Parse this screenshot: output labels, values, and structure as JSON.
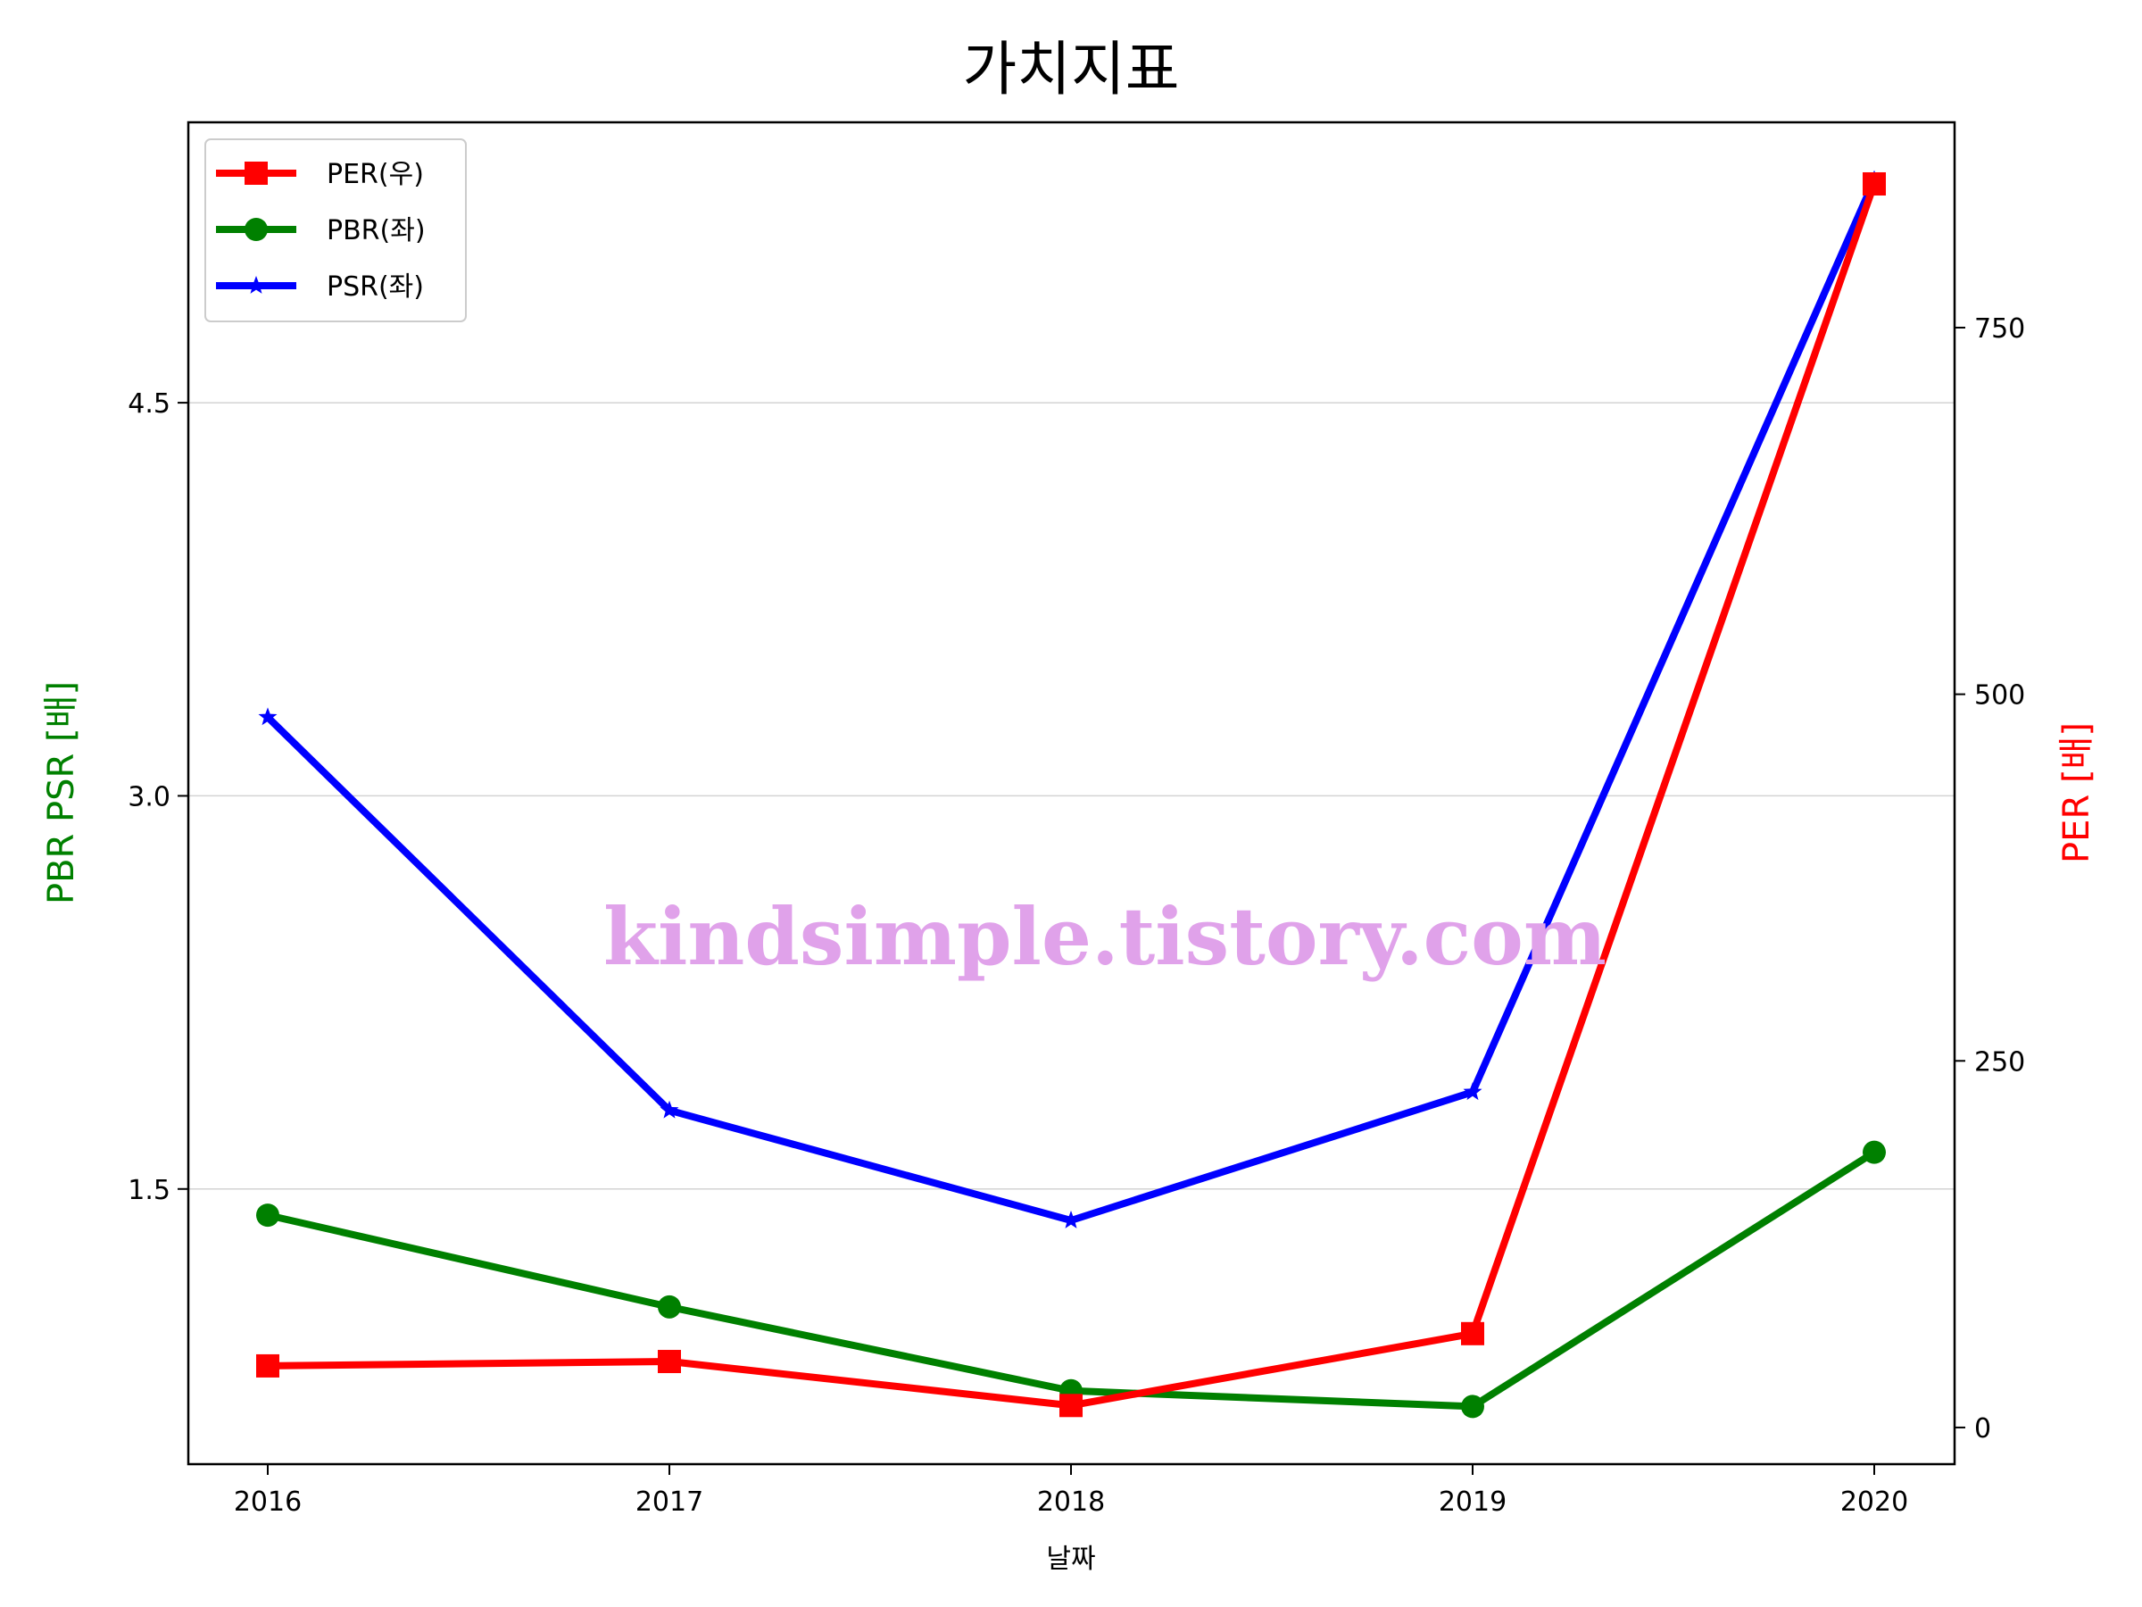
{
  "chart_data": {
    "type": "line",
    "title": "가치지표",
    "xlabel": "날짜",
    "ylabel_left": "PBR PSR [배]",
    "ylabel_right": "PER [배]",
    "categories": [
      "2016",
      "2017",
      "2018",
      "2019",
      "2020"
    ],
    "ylim_left": [
      0.45,
      5.57
    ],
    "yticks_left": [
      "1.5",
      "3.0",
      "4.5"
    ],
    "ylim_right": [
      -25,
      890
    ],
    "yticks_right": [
      "0",
      "250",
      "500",
      "750"
    ],
    "grid": "horizontal, left axis",
    "legend_position": "top-left",
    "series": [
      {
        "name": "PER(우)",
        "axis": "right",
        "color": "#ff0000",
        "marker": "square",
        "values": [
          42,
          45,
          15,
          64,
          848
        ]
      },
      {
        "name": "PBR(좌)",
        "axis": "left",
        "color": "#008000",
        "marker": "circle",
        "values": [
          1.4,
          1.05,
          0.73,
          0.67,
          1.64
        ]
      },
      {
        "name": "PSR(좌)",
        "axis": "left",
        "color": "#0000ff",
        "marker": "star",
        "values": [
          3.3,
          1.8,
          1.38,
          1.87,
          5.35
        ]
      }
    ],
    "watermark": "kindsimple.tistory.com"
  }
}
